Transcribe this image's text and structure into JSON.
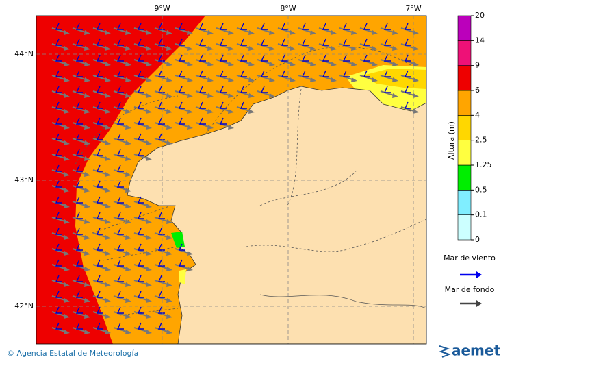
{
  "map": {
    "lon_labels": [
      "9°W",
      "8°W",
      "7°W"
    ],
    "lat_labels": [
      "44°N",
      "43°N",
      "42°N"
    ]
  },
  "colorbar": {
    "label": "Altura (m)",
    "ticks": [
      "0",
      "0.1",
      "0.5",
      "1.25",
      "2.5",
      "4",
      "6",
      "9",
      "14",
      "20"
    ],
    "colors": [
      "#ccffff",
      "#80eeff",
      "#00ee00",
      "#ffff40",
      "#ffd700",
      "#ffa500",
      "#ee0000",
      "#ee1177",
      "#bb00bb"
    ]
  },
  "legend": {
    "wind_sea": "Mar de viento",
    "swell": "Mar de fondo"
  },
  "footer": {
    "credit": "© Agencia Estatal de Meteorología",
    "logo": "aemet"
  }
}
